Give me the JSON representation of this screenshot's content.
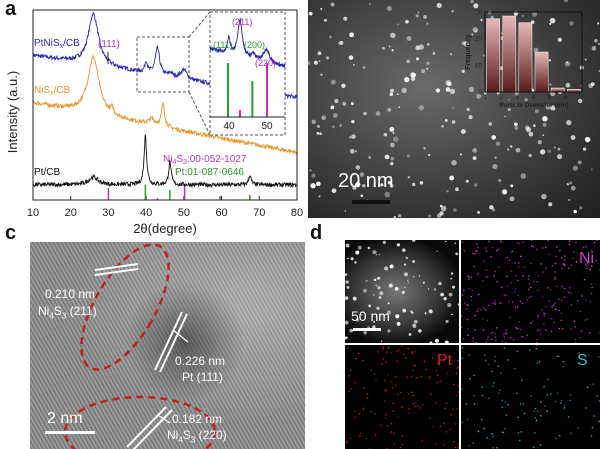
{
  "panel_labels": {
    "a": "a",
    "b": "b",
    "c": "c",
    "d": "d"
  },
  "chart_data": [
    {
      "type": "line",
      "panel": "a",
      "xlabel": "2θ(degree)",
      "ylabel": "Intensity (a.u.)",
      "xlim": [
        10,
        80
      ],
      "xticks": [
        "10",
        "20",
        "30",
        "40",
        "50",
        "60",
        "70",
        "80"
      ],
      "series": [
        {
          "name": "PtNiSx/CB",
          "name_main": "PtNiS",
          "name_sub": "x",
          "name_tail": "/CB",
          "color": "#2a2ab8",
          "baseline": [
            76,
            54
          ],
          "peaks": [
            [
              26,
              27,
              1.6
            ],
            [
              40,
              6,
              0.4
            ],
            [
              43,
              14,
              0.7
            ],
            [
              46.5,
              2,
              0.5
            ],
            [
              50,
              5,
              1.0
            ]
          ]
        },
        {
          "name": "NiSx/CB",
          "name_main": "NiS",
          "name_sub": "x",
          "name_tail": "/CB",
          "color": "#e8952a",
          "baseline": [
            51,
            25
          ],
          "peaks": [
            [
              26,
              30,
              1.8
            ],
            [
              31,
              3,
              0.4
            ],
            [
              41.5,
              3,
              1.0
            ],
            [
              44.5,
              12,
              0.5
            ]
          ]
        },
        {
          "name": "Pt/CB",
          "name_main": "Pt/CB",
          "name_sub": "",
          "name_tail": "",
          "color": "#111111",
          "baseline": [
            8,
            8
          ],
          "peaks": [
            [
              26,
              4,
              1.5
            ],
            [
              39.8,
              26,
              0.4
            ],
            [
              46.3,
              12,
              0.4
            ],
            [
              67.5,
              5,
              0.4
            ]
          ]
        }
      ],
      "references": [
        {
          "label": "Ni4S3:00-052-1027",
          "label_main": "Ni",
          "label_sub1": "4",
          "label_mid": "S",
          "label_sub2": "3",
          "label_tail": ":00-052-1027",
          "color": "#c030c0",
          "lines": [
            [
              30,
              12
            ],
            [
              43,
              2
            ],
            [
              50.2,
              15
            ],
            [
              59.6,
              4
            ]
          ]
        },
        {
          "label": "Pt:01-087-0646",
          "color": "#2a9a2a",
          "lines": [
            [
              39.8,
              15
            ],
            [
              46.3,
              10
            ],
            [
              67.5,
              5
            ]
          ]
        }
      ],
      "annotations": [
        {
          "text": "(111)",
          "color": "#c030c0",
          "x": 30
        }
      ],
      "inset": {
        "xlim": [
          35,
          55
        ],
        "xticks": [
          "40",
          "50"
        ],
        "annotations": [
          {
            "text": "(111)",
            "color": "#2a9a2a"
          },
          {
            "text": "(211)",
            "color": "#c030c0"
          },
          {
            "text": "(200)",
            "color": "#2a9a2a"
          },
          {
            "text": "(220)",
            "color": "#c030c0"
          }
        ]
      }
    },
    {
      "type": "bar",
      "panel": "b-inset",
      "xlabel": "Particle Diameter (nm)",
      "ylabel": "Frequency",
      "xlim": [
        1,
        7
      ],
      "ylim": [
        0,
        30
      ],
      "xticks": [
        "1",
        "2",
        "3",
        "4",
        "5",
        "6",
        "7"
      ],
      "yticks": [
        "0",
        "10",
        "20",
        "30"
      ],
      "bins": [
        [
          1,
          2
        ],
        [
          2,
          3
        ],
        [
          3,
          4
        ],
        [
          4,
          5
        ],
        [
          5,
          6
        ],
        [
          6,
          7
        ]
      ],
      "values": [
        27.5,
        28.5,
        26,
        15,
        1.5,
        1
      ],
      "color": "#c89090"
    }
  ],
  "panel_b": {
    "scale": "20 nm"
  },
  "panel_c": {
    "scale": "2 nm",
    "annotations": [
      {
        "d": "0.210 nm",
        "phase_main": "Ni",
        "phase_sub1": "4",
        "phase_mid": "S",
        "phase_sub2": "3",
        "phase_tail": " (211)"
      },
      {
        "d": "0.226 nm",
        "phase": "Pt (111)"
      },
      {
        "d": "0.182 nm",
        "phase_main": "Ni",
        "phase_sub1": "4",
        "phase_mid": "S",
        "phase_sub2": "3",
        "phase_tail": " (220)"
      }
    ]
  },
  "panel_d": {
    "scale": "50 nm",
    "maps": [
      {
        "label": "Ni",
        "color": "#d040d0"
      },
      {
        "label": "Pt",
        "color": "#e02020"
      },
      {
        "label": "S",
        "color": "#30c0c0"
      }
    ]
  }
}
